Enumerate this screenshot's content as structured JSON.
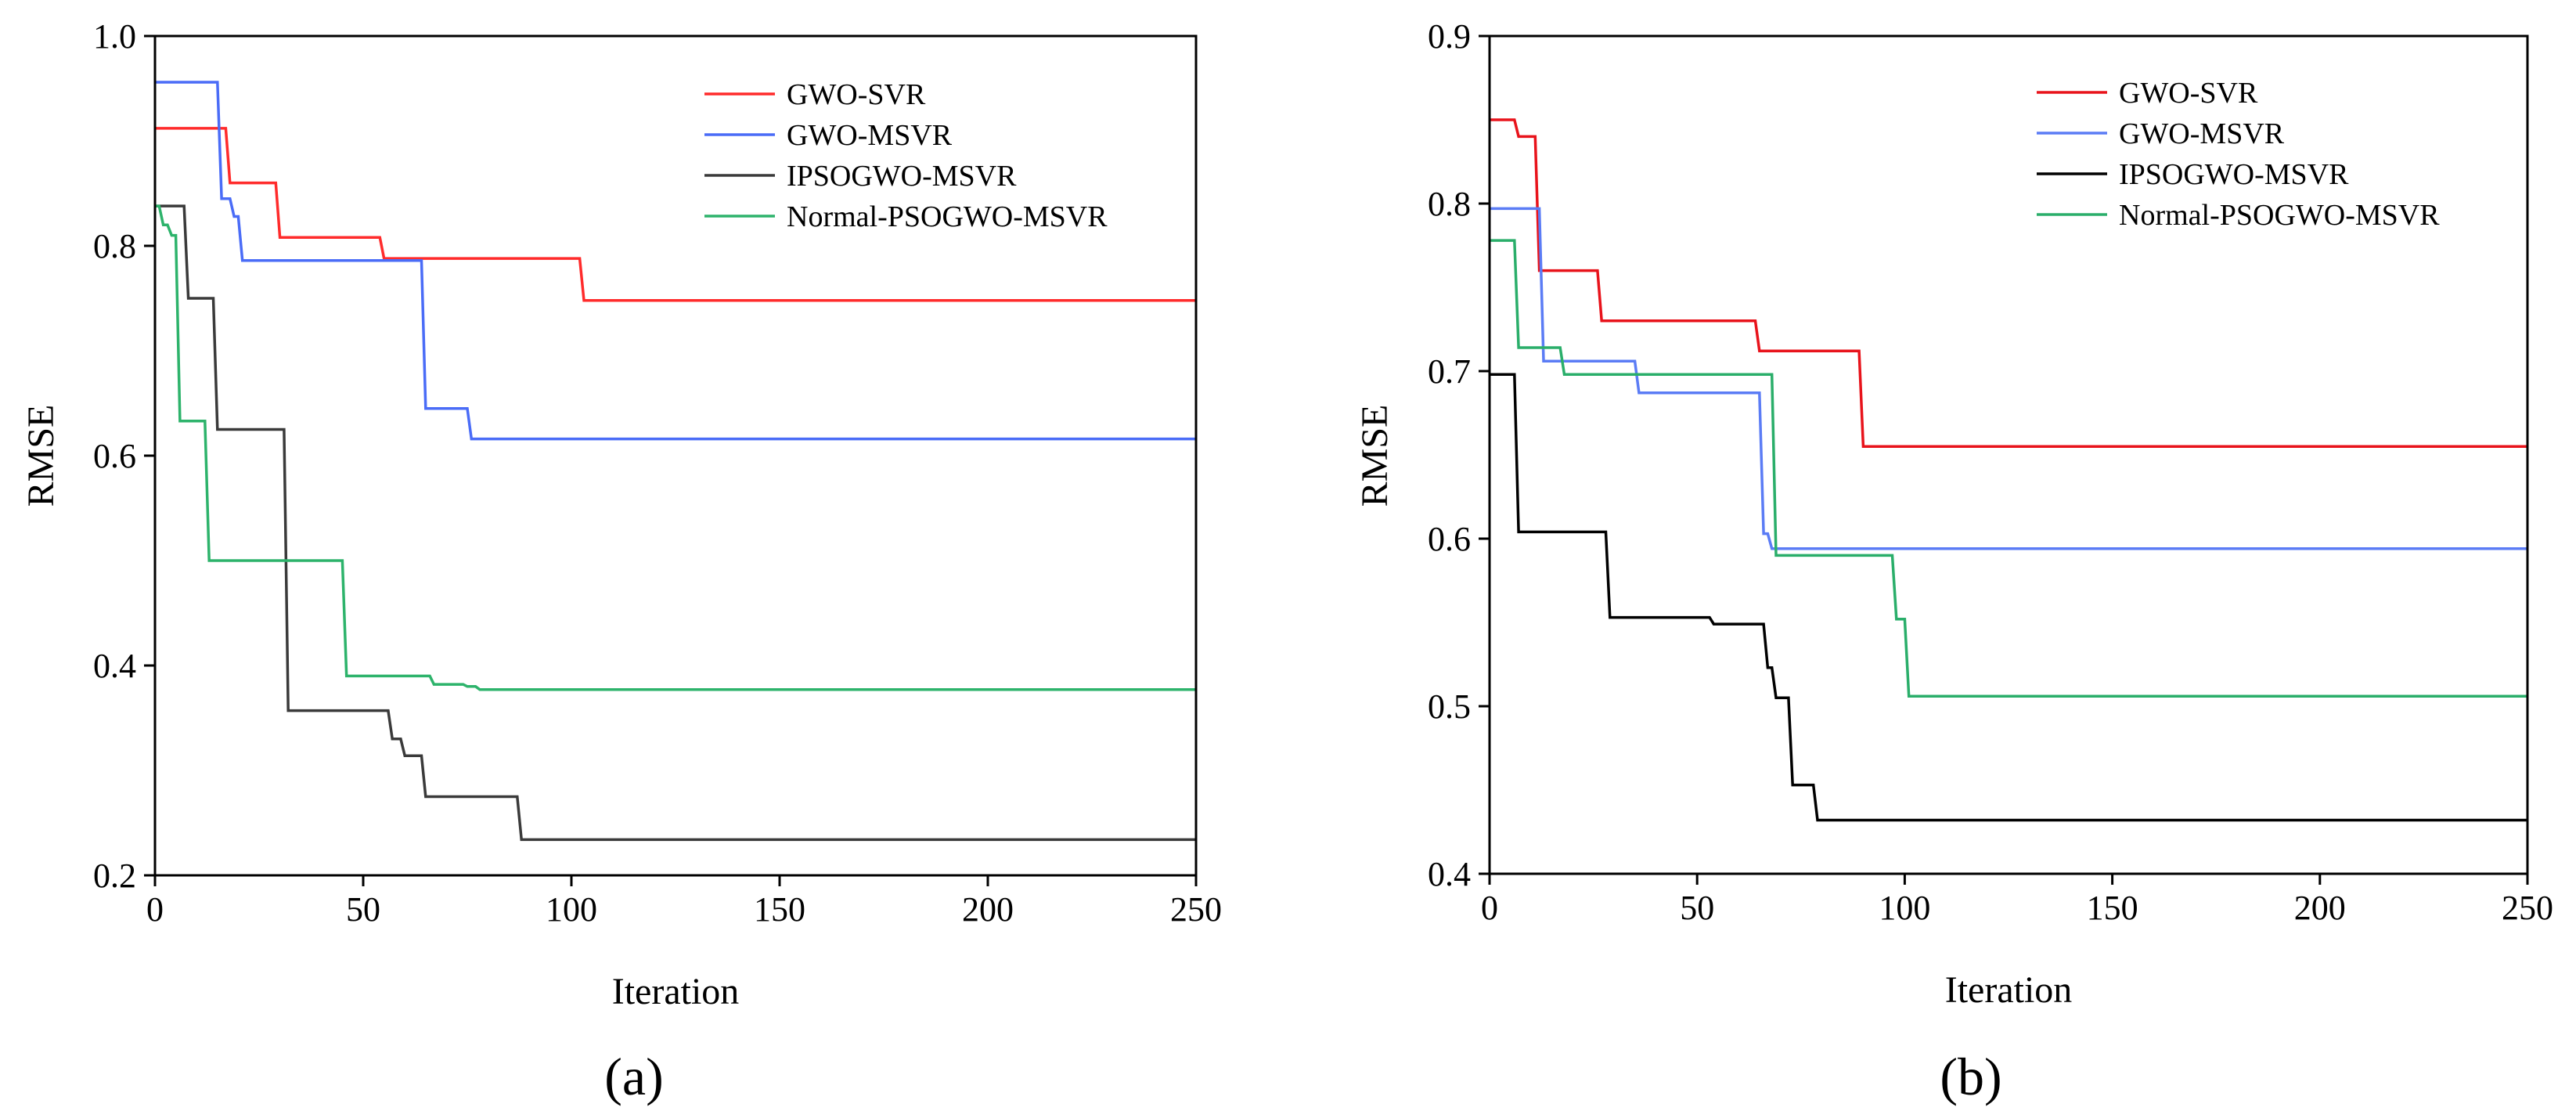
{
  "chart_data": [
    {
      "type": "line",
      "panel_label": "(a)",
      "title": "",
      "xlabel": "Iteration",
      "ylabel": "RMSE",
      "xlim": [
        0,
        250
      ],
      "ylim": [
        0.2,
        1.0
      ],
      "xticks": [
        0,
        50,
        100,
        150,
        200,
        250
      ],
      "yticks": [
        0.2,
        0.4,
        0.6,
        0.8,
        1.0
      ],
      "xtick_labels": [
        "0",
        "50",
        "100",
        "150",
        "200",
        "250"
      ],
      "ytick_labels": [
        "0.2",
        "0.4",
        "0.6",
        "0.8",
        "1.0"
      ],
      "legend_position": "top-right",
      "grid": false,
      "series": [
        {
          "name": "GWO-SVR",
          "color": "#ff2b2b",
          "step_points": [
            [
              0,
              0.912
            ],
            [
              17,
              0.912
            ],
            [
              18,
              0.86
            ],
            [
              29,
              0.86
            ],
            [
              30,
              0.808
            ],
            [
              54,
              0.808
            ],
            [
              55,
              0.788
            ],
            [
              102,
              0.788
            ],
            [
              103,
              0.748
            ],
            [
              250,
              0.748
            ]
          ]
        },
        {
          "name": "GWO-MSVR",
          "color": "#4a6cf7",
          "step_points": [
            [
              0,
              0.956
            ],
            [
              15,
              0.956
            ],
            [
              16,
              0.845
            ],
            [
              18,
              0.845
            ],
            [
              19,
              0.828
            ],
            [
              20,
              0.828
            ],
            [
              21,
              0.786
            ],
            [
              64,
              0.786
            ],
            [
              65,
              0.645
            ],
            [
              75,
              0.645
            ],
            [
              76,
              0.616
            ],
            [
              250,
              0.616
            ]
          ]
        },
        {
          "name": "IPSOGWO-MSVR",
          "color": "#3a3a3a",
          "step_points": [
            [
              0,
              0.838
            ],
            [
              7,
              0.838
            ],
            [
              8,
              0.75
            ],
            [
              14,
              0.75
            ],
            [
              15,
              0.625
            ],
            [
              31,
              0.625
            ],
            [
              32,
              0.357
            ],
            [
              56,
              0.357
            ],
            [
              57,
              0.33
            ],
            [
              59,
              0.33
            ],
            [
              60,
              0.314
            ],
            [
              64,
              0.314
            ],
            [
              65,
              0.275
            ],
            [
              87,
              0.275
            ],
            [
              88,
              0.234
            ],
            [
              250,
              0.234
            ]
          ]
        },
        {
          "name": "Normal-PSOGWO-MSVR",
          "color": "#2db36b",
          "step_points": [
            [
              0,
              0.838
            ],
            [
              1,
              0.838
            ],
            [
              2,
              0.82
            ],
            [
              3,
              0.82
            ],
            [
              4,
              0.81
            ],
            [
              5,
              0.81
            ],
            [
              6,
              0.633
            ],
            [
              12,
              0.633
            ],
            [
              13,
              0.5
            ],
            [
              45,
              0.5
            ],
            [
              46,
              0.39
            ],
            [
              66,
              0.39
            ],
            [
              67,
              0.382
            ],
            [
              74,
              0.382
            ],
            [
              75,
              0.38
            ],
            [
              77,
              0.38
            ],
            [
              78,
              0.377
            ],
            [
              250,
              0.377
            ]
          ]
        }
      ]
    },
    {
      "type": "line",
      "panel_label": "(b)",
      "title": "",
      "xlabel": "Iteration",
      "ylabel": "RMSE",
      "xlim": [
        0,
        250
      ],
      "ylim": [
        0.4,
        0.9
      ],
      "xticks": [
        0,
        50,
        100,
        150,
        200,
        250
      ],
      "yticks": [
        0.4,
        0.5,
        0.6,
        0.7,
        0.8,
        0.9
      ],
      "xtick_labels": [
        "0",
        "50",
        "100",
        "150",
        "200",
        "250"
      ],
      "ytick_labels": [
        "0.4",
        "0.5",
        "0.6",
        "0.7",
        "0.8",
        "0.9"
      ],
      "legend_position": "top-right",
      "grid": false,
      "series": [
        {
          "name": "GWO-SVR",
          "color": "#e8131b",
          "step_points": [
            [
              0,
              0.85
            ],
            [
              6,
              0.85
            ],
            [
              7,
              0.84
            ],
            [
              11,
              0.84
            ],
            [
              12,
              0.76
            ],
            [
              26,
              0.76
            ],
            [
              27,
              0.73
            ],
            [
              64,
              0.73
            ],
            [
              65,
              0.712
            ],
            [
              89,
              0.712
            ],
            [
              90,
              0.655
            ],
            [
              250,
              0.655
            ]
          ]
        },
        {
          "name": "GWO-MSVR",
          "color": "#5b7cf5",
          "step_points": [
            [
              0,
              0.797
            ],
            [
              12,
              0.797
            ],
            [
              13,
              0.706
            ],
            [
              35,
              0.706
            ],
            [
              36,
              0.687
            ],
            [
              65,
              0.687
            ],
            [
              66,
              0.603
            ],
            [
              67,
              0.603
            ],
            [
              68,
              0.594
            ],
            [
              250,
              0.594
            ]
          ]
        },
        {
          "name": "IPSOGWO-MSVR",
          "color": "#000000",
          "step_points": [
            [
              0,
              0.698
            ],
            [
              6,
              0.698
            ],
            [
              7,
              0.604
            ],
            [
              28,
              0.604
            ],
            [
              29,
              0.553
            ],
            [
              53,
              0.553
            ],
            [
              54,
              0.549
            ],
            [
              66,
              0.549
            ],
            [
              67,
              0.523
            ],
            [
              68,
              0.523
            ],
            [
              69,
              0.505
            ],
            [
              72,
              0.505
            ],
            [
              73,
              0.453
            ],
            [
              78,
              0.453
            ],
            [
              79,
              0.432
            ],
            [
              250,
              0.432
            ]
          ]
        },
        {
          "name": "Normal-PSOGWO-MSVR",
          "color": "#2aae6a",
          "step_points": [
            [
              0,
              0.778
            ],
            [
              6,
              0.778
            ],
            [
              7,
              0.714
            ],
            [
              17,
              0.714
            ],
            [
              18,
              0.698
            ],
            [
              68,
              0.698
            ],
            [
              69,
              0.59
            ],
            [
              97,
              0.59
            ],
            [
              98,
              0.552
            ],
            [
              100,
              0.552
            ],
            [
              101,
              0.506
            ],
            [
              250,
              0.506
            ]
          ]
        }
      ]
    }
  ]
}
